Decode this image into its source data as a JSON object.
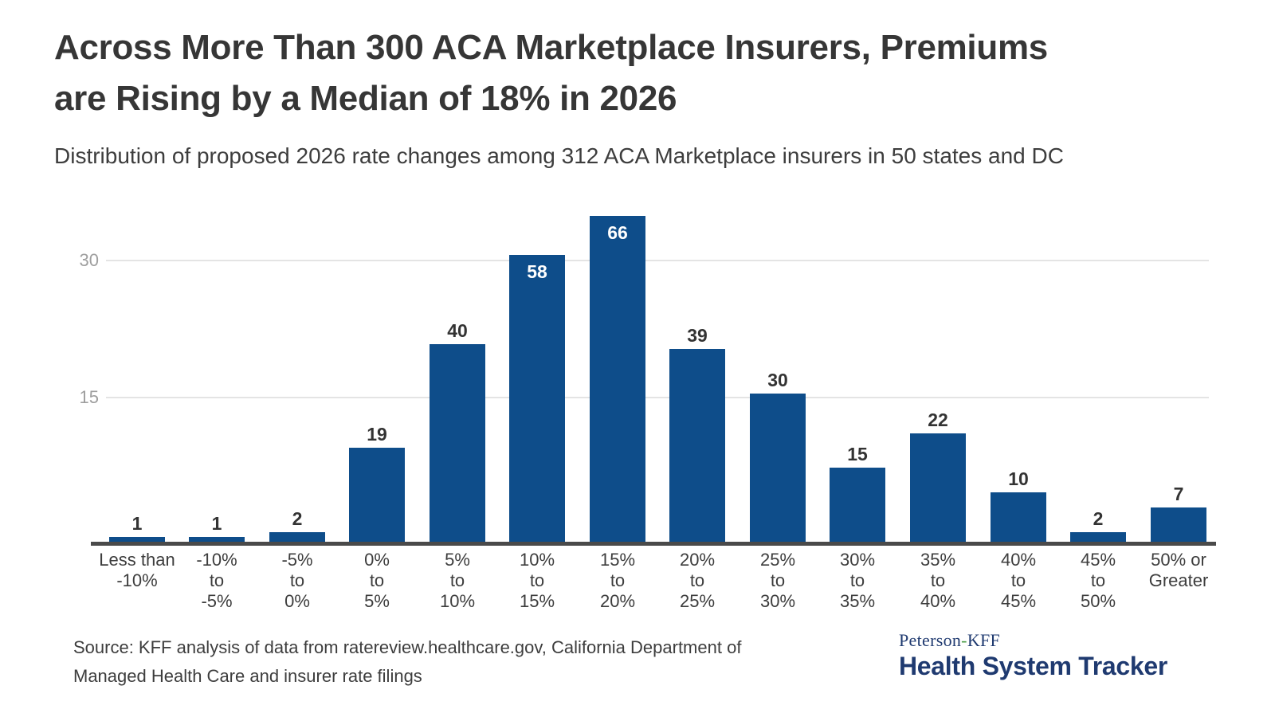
{
  "header": {
    "title_lines": [
      "Across More Than 300 ACA Marketplace Insurers, Premiums",
      "are Rising by a Median of 18% in 2026"
    ],
    "subtitle": "Distribution of proposed 2026 rate changes among 312 ACA Marketplace insurers in 50 states and DC"
  },
  "chart_data": {
    "type": "bar",
    "title": "Across More Than 300 ACA Marketplace Insurers, Premiums are Rising by a Median of 18% in 2026",
    "subtitle": "Distribution of proposed 2026 rate changes among 312 ACA Marketplace insurers in 50 states and DC",
    "categories": [
      "Less than\n-10%",
      "-10%\nto\n-5%",
      "-5%\nto\n0%",
      "0%\nto\n5%",
      "5%\nto\n10%",
      "10%\nto\n15%",
      "15%\nto\n20%",
      "20%\nto\n25%",
      "25%\nto\n30%",
      "30%\nto\n35%",
      "35%\nto\n40%",
      "40%\nto\n45%",
      "45%\nto\n50%",
      "50% or\nGreater"
    ],
    "values": [
      1,
      1,
      2,
      19,
      40,
      58,
      66,
      39,
      30,
      15,
      22,
      10,
      2,
      7
    ],
    "xlabel": "",
    "ylabel": "",
    "yticks": [
      15,
      30
    ],
    "grid": "horizontal gridlines only, no y-axis zero label",
    "legend": "none",
    "value_labels": "every bar labeled with its count; labels for 58 and 66 are white inside the bar top, all others dark above the bar"
  },
  "footer": {
    "source_lines": [
      "Source: KFF analysis of data from ratereview.healthcare.gov, California Department of",
      "Managed Health Care and insurer rate filings"
    ],
    "brand": {
      "top_pre": "Peterson",
      "top_hyphen": "-",
      "top_post": "KFF",
      "bottom": "Health System Tracker"
    }
  },
  "colors": {
    "bar": "#0e4d8a",
    "title_text": "#363636",
    "body_text": "#3d3d3d",
    "axis_line": "#4a4a4a",
    "gridline": "#e4e4e4",
    "ytick_text": "#9e9e9e",
    "value_label_dark": "#333333",
    "value_label_light": "#ffffff",
    "brand_navy": "#1f3a70",
    "brand_green": "#4a9d45"
  }
}
